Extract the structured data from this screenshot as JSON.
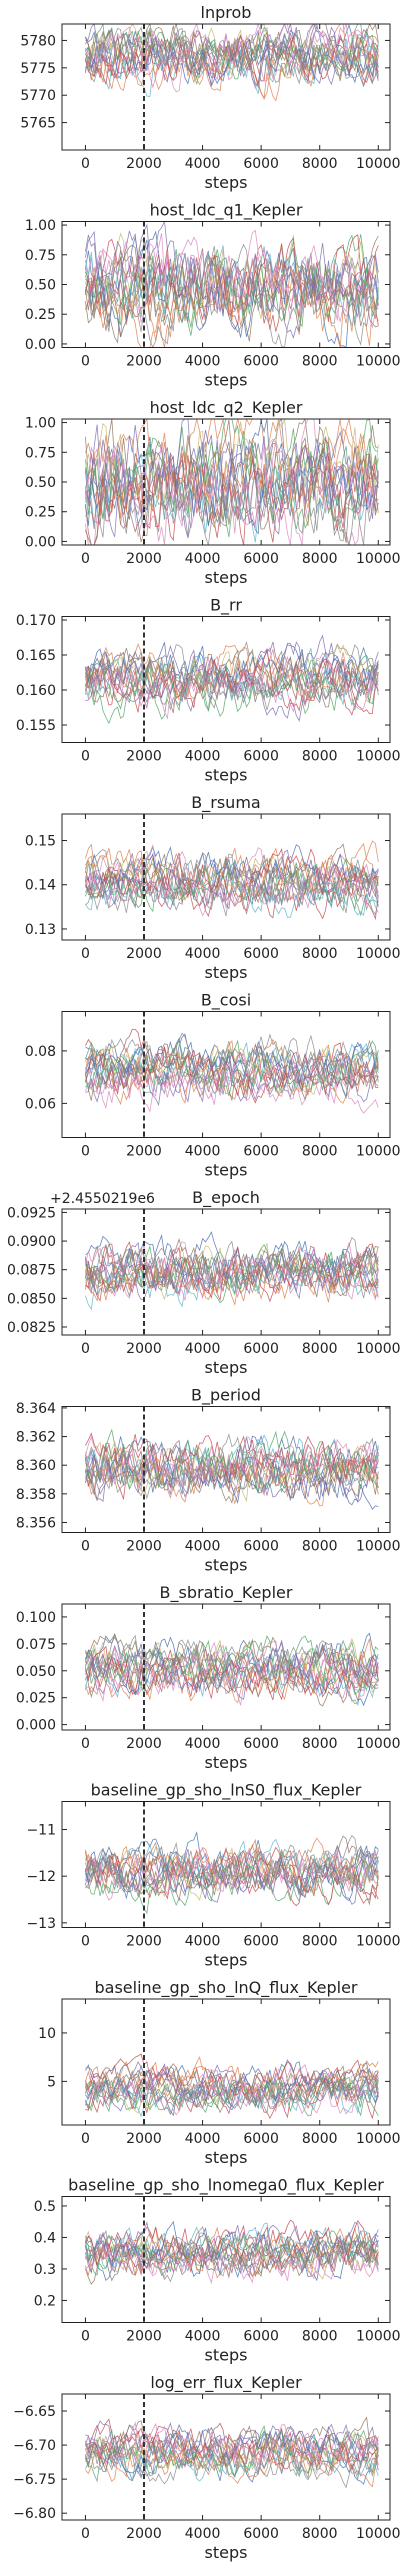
{
  "chart_data": [
    {
      "type": "line",
      "title": "lnprob",
      "xlabel": "steps",
      "ylim": [
        5760,
        5783
      ],
      "yticks": [
        5765,
        5770,
        5775,
        5780
      ],
      "ytick_labels": [
        "5765",
        "5770",
        "5775",
        "5780"
      ],
      "center": 5777,
      "spread": 4.0,
      "yoffset": ""
    },
    {
      "type": "line",
      "title": "host_ldc_q1_Kepler",
      "xlabel": "steps",
      "ylim": [
        -0.03,
        1.03
      ],
      "yticks": [
        0.0,
        0.25,
        0.5,
        0.75,
        1.0
      ],
      "ytick_labels": [
        "0.00",
        "0.25",
        "0.50",
        "0.75",
        "1.00"
      ],
      "center": 0.45,
      "spread": 0.28,
      "yoffset": ""
    },
    {
      "type": "line",
      "title": "host_ldc_q2_Kepler",
      "xlabel": "steps",
      "ylim": [
        -0.03,
        1.03
      ],
      "yticks": [
        0.0,
        0.25,
        0.5,
        0.75,
        1.0
      ],
      "ytick_labels": [
        "0.00",
        "0.25",
        "0.50",
        "0.75",
        "1.00"
      ],
      "center": 0.5,
      "spread": 0.33,
      "yoffset": ""
    },
    {
      "type": "line",
      "title": "B_rr",
      "xlabel": "steps",
      "ylim": [
        0.1525,
        0.1705
      ],
      "yticks": [
        0.155,
        0.16,
        0.165,
        0.17
      ],
      "ytick_labels": [
        "0.155",
        "0.160",
        "0.165",
        "0.170"
      ],
      "center": 0.1615,
      "spread": 0.003,
      "yoffset": ""
    },
    {
      "type": "line",
      "title": "B_rsuma",
      "xlabel": "steps",
      "ylim": [
        0.1275,
        0.156
      ],
      "yticks": [
        0.13,
        0.14,
        0.15
      ],
      "ytick_labels": [
        "0.13",
        "0.14",
        "0.15"
      ],
      "center": 0.141,
      "spread": 0.0045,
      "yoffset": ""
    },
    {
      "type": "line",
      "title": "B_cosi",
      "xlabel": "steps",
      "ylim": [
        0.047,
        0.095
      ],
      "yticks": [
        0.06,
        0.08
      ],
      "ytick_labels": [
        "0.06",
        "0.08"
      ],
      "center": 0.073,
      "spread": 0.0075,
      "yoffset": ""
    },
    {
      "type": "line",
      "title": "B_epoch",
      "xlabel": "steps",
      "ylim": [
        0.0818,
        0.0928
      ],
      "yticks": [
        0.0825,
        0.085,
        0.0875,
        0.09,
        0.0925
      ],
      "ytick_labels": [
        "0.0825",
        "0.0850",
        "0.0875",
        "0.0900",
        "0.0925"
      ],
      "center": 0.0872,
      "spread": 0.0017,
      "yoffset": "+2.4550219e6"
    },
    {
      "type": "line",
      "title": "B_period",
      "xlabel": "steps",
      "ylim": [
        8.3553,
        8.3641
      ],
      "yticks": [
        8.356,
        8.358,
        8.36,
        8.362,
        8.364
      ],
      "ytick_labels": [
        "8.356",
        "8.358",
        "8.360",
        "8.362",
        "8.364"
      ],
      "center": 8.3598,
      "spread": 0.0015,
      "yoffset": ""
    },
    {
      "type": "line",
      "title": "B_sbratio_Kepler",
      "xlabel": "steps",
      "ylim": [
        -0.005,
        0.112
      ],
      "yticks": [
        0.0,
        0.025,
        0.05,
        0.075,
        0.1
      ],
      "ytick_labels": [
        "0.000",
        "0.025",
        "0.050",
        "0.075",
        "0.100"
      ],
      "center": 0.052,
      "spread": 0.018,
      "yoffset": ""
    },
    {
      "type": "line",
      "title": "baseline_gp_sho_lnS0_flux_Kepler",
      "xlabel": "steps",
      "ylim": [
        -13.1,
        -10.4
      ],
      "yticks": [
        -13,
        -12,
        -11
      ],
      "ytick_labels": [
        "−13",
        "−12",
        "−11"
      ],
      "center": -11.9,
      "spread": 0.4,
      "yoffset": ""
    },
    {
      "type": "line",
      "title": "baseline_gp_sho_lnQ_flux_Kepler",
      "xlabel": "steps",
      "ylim": [
        0.5,
        13.5
      ],
      "yticks": [
        5,
        10
      ],
      "ytick_labels": [
        "5",
        "10"
      ],
      "center": 4.2,
      "spread": 1.6,
      "yoffset": ""
    },
    {
      "type": "line",
      "title": "baseline_gp_sho_lnomega0_flux_Kepler",
      "xlabel": "steps",
      "ylim": [
        0.13,
        0.53
      ],
      "yticks": [
        0.2,
        0.3,
        0.4,
        0.5
      ],
      "ytick_labels": [
        "0.2",
        "0.3",
        "0.4",
        "0.5"
      ],
      "center": 0.36,
      "spread": 0.055,
      "yoffset": ""
    },
    {
      "type": "line",
      "title": "log_err_flux_Kepler",
      "xlabel": "steps",
      "ylim": [
        -6.81,
        -6.625
      ],
      "yticks": [
        -6.8,
        -6.75,
        -6.7,
        -6.65
      ],
      "ytick_labels": [
        "−6.80",
        "−6.75",
        "−6.70",
        "−6.65"
      ],
      "center": -6.71,
      "spread": 0.025,
      "yoffset": ""
    }
  ],
  "shared": {
    "xlim": [
      -800,
      10400
    ],
    "xticks": [
      0,
      2000,
      4000,
      6000,
      8000,
      10000
    ],
    "xtick_labels": [
      "0",
      "2000",
      "4000",
      "6000",
      "8000",
      "10000"
    ],
    "burn_in_step": 2000,
    "n_walkers": 18,
    "colors": [
      "#4c72b0",
      "#dd8452",
      "#55a868",
      "#c44e52",
      "#8172b3",
      "#937860",
      "#da8bc3",
      "#8c8c8c",
      "#ccb974",
      "#64b5cd"
    ]
  }
}
